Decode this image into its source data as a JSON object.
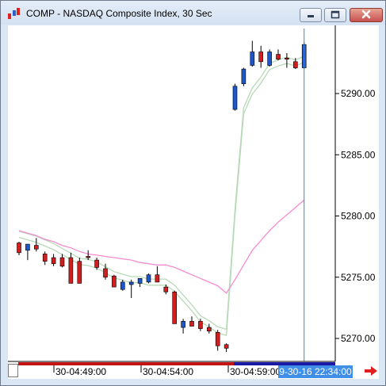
{
  "window": {
    "title": "COMP - NASDAQ Composite Index, 30 Sec",
    "icons": [
      "app-logo-icon",
      "minimize-icon",
      "restore-icon",
      "close-icon"
    ]
  },
  "chart": {
    "y_ticks": [
      "5290.00",
      "5285.00",
      "5280.00",
      "5275.00",
      "5270.00"
    ],
    "x_ticks": [
      "30-04:49:00",
      "30-04:54:00",
      "30-04:59:00"
    ],
    "crosshair_time": "9-30-16 22:34:00",
    "colors": {
      "up_candle": "#1f56c9",
      "down_candle": "#d11f1f",
      "ma_fast": "#b7d9b7",
      "ma_slow": "#f58ccf",
      "crosshair": "#2f8fbf",
      "nav_arrow": "#e02020"
    }
  },
  "chart_data": {
    "type": "candlestick",
    "title": "COMP - NASDAQ Composite Index, 30 Sec",
    "ylim": [
      5268.0,
      5295.5
    ],
    "x_tick_labels": [
      "30-04:49:00",
      "30-04:54:00",
      "30-04:59:00"
    ],
    "candles": [
      {
        "o": 5277.8,
        "h": 5277.9,
        "l": 5276.8,
        "c": 5277.0,
        "dir": "down"
      },
      {
        "o": 5277.2,
        "h": 5277.5,
        "l": 5276.4,
        "c": 5277.7,
        "dir": "up"
      },
      {
        "o": 5277.6,
        "h": 5278.2,
        "l": 5277.1,
        "c": 5277.3,
        "dir": "down"
      },
      {
        "o": 5276.9,
        "h": 5277.1,
        "l": 5276.0,
        "c": 5276.3,
        "dir": "down"
      },
      {
        "o": 5276.6,
        "h": 5276.9,
        "l": 5275.9,
        "c": 5276.1,
        "dir": "down"
      },
      {
        "o": 5276.6,
        "h": 5276.9,
        "l": 5275.8,
        "c": 5275.9,
        "dir": "down"
      },
      {
        "o": 5276.6,
        "h": 5277.0,
        "l": 5274.5,
        "c": 5274.5,
        "dir": "down"
      },
      {
        "o": 5276.3,
        "h": 5276.6,
        "l": 5274.6,
        "c": 5274.5,
        "dir": "down"
      },
      {
        "o": 5276.7,
        "h": 5277.2,
        "l": 5276.4,
        "c": 5276.6,
        "dir": "down"
      },
      {
        "o": 5276.4,
        "h": 5276.6,
        "l": 5275.6,
        "c": 5275.8,
        "dir": "down"
      },
      {
        "o": 5275.7,
        "h": 5276.1,
        "l": 5274.8,
        "c": 5275.0,
        "dir": "down"
      },
      {
        "o": 5275.1,
        "h": 5275.2,
        "l": 5274.2,
        "c": 5274.2,
        "dir": "down"
      },
      {
        "o": 5274.0,
        "h": 5274.8,
        "l": 5273.9,
        "c": 5274.6,
        "dir": "up"
      },
      {
        "o": 5274.6,
        "h": 5274.8,
        "l": 5273.3,
        "c": 5274.4,
        "dir": "up"
      },
      {
        "o": 5274.5,
        "h": 5274.9,
        "l": 5274.2,
        "c": 5274.9,
        "dir": "up"
      },
      {
        "o": 5274.6,
        "h": 5275.3,
        "l": 5274.5,
        "c": 5275.2,
        "dir": "up"
      },
      {
        "o": 5275.2,
        "h": 5275.9,
        "l": 5274.6,
        "c": 5274.6,
        "dir": "down"
      },
      {
        "o": 5274.2,
        "h": 5274.4,
        "l": 5273.6,
        "c": 5273.8,
        "dir": "down"
      },
      {
        "o": 5273.8,
        "h": 5273.9,
        "l": 5271.2,
        "c": 5271.2,
        "dir": "down"
      },
      {
        "o": 5270.9,
        "h": 5271.6,
        "l": 5270.4,
        "c": 5271.4,
        "dir": "up"
      },
      {
        "o": 5271.4,
        "h": 5271.8,
        "l": 5271.0,
        "c": 5271.0,
        "dir": "down"
      },
      {
        "o": 5271.4,
        "h": 5271.6,
        "l": 5270.6,
        "c": 5270.8,
        "dir": "down"
      },
      {
        "o": 5270.9,
        "h": 5271.2,
        "l": 5270.4,
        "c": 5270.6,
        "dir": "down"
      },
      {
        "o": 5270.5,
        "h": 5270.7,
        "l": 5269.0,
        "c": 5269.4,
        "dir": "down"
      },
      {
        "o": 5269.5,
        "h": 5269.6,
        "l": 5268.9,
        "c": 5269.2,
        "dir": "down"
      },
      {
        "o": 5288.7,
        "h": 5290.8,
        "l": 5288.6,
        "c": 5290.6,
        "dir": "up"
      },
      {
        "o": 5290.8,
        "h": 5292.1,
        "l": 5290.6,
        "c": 5292.0,
        "dir": "up"
      },
      {
        "o": 5292.3,
        "h": 5294.3,
        "l": 5292.2,
        "c": 5293.4,
        "dir": "up"
      },
      {
        "o": 5293.4,
        "h": 5293.9,
        "l": 5292.1,
        "c": 5292.6,
        "dir": "down"
      },
      {
        "o": 5292.3,
        "h": 5293.6,
        "l": 5292.2,
        "c": 5293.4,
        "dir": "up"
      },
      {
        "o": 5293.2,
        "h": 5293.6,
        "l": 5292.7,
        "c": 5292.8,
        "dir": "down"
      },
      {
        "o": 5292.9,
        "h": 5293.3,
        "l": 5292.1,
        "c": 5292.9,
        "dir": "down"
      },
      {
        "o": 5292.6,
        "h": 5292.9,
        "l": 5292.0,
        "c": 5292.1,
        "dir": "down"
      },
      {
        "o": 5292.1,
        "h": 5294.2,
        "l": 5292.0,
        "c": 5294.0,
        "dir": "up"
      }
    ],
    "ma_fast": [
      5278.5,
      5278.3,
      5278.1,
      5277.8,
      5277.5,
      5277.1,
      5276.7,
      5276.3,
      5276.2,
      5276.0,
      5275.6,
      5275.2,
      5275.0,
      5274.8,
      5274.8,
      5274.6,
      5274.6,
      5274.6,
      5274.1,
      5273.3,
      5272.5,
      5271.6,
      5271.2,
      5270.7,
      5270.5,
      5280.3,
      5288.6,
      5290.2,
      5291.1,
      5292.2,
      5292.5,
      5292.7,
      5292.5,
      5292.8
    ],
    "ma_slow": [
      5278.8,
      5278.6,
      5278.4,
      5278.1,
      5277.9,
      5277.6,
      5277.4,
      5277.1,
      5276.9,
      5276.8,
      5276.7,
      5276.6,
      5276.5,
      5276.4,
      5276.2,
      5276.1,
      5276.0,
      5276.0,
      5275.8,
      5275.5,
      5275.2,
      5274.9,
      5274.6,
      5274.3,
      5273.7,
      5274.8,
      5276.0,
      5277.2,
      5278.0,
      5278.8,
      5279.5,
      5280.1,
      5280.7,
      5281.3
    ]
  }
}
